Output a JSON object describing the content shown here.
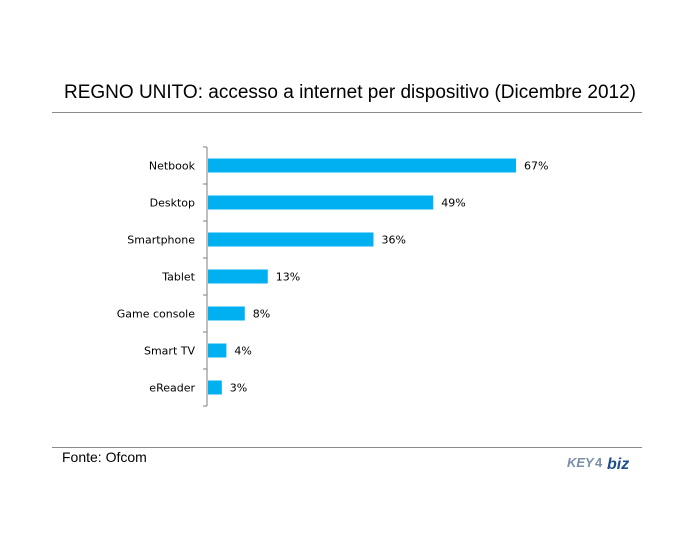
{
  "chart_data": {
    "type": "bar",
    "orientation": "horizontal",
    "title": "REGNO UNITO: accesso a internet per dispositivo (Dicembre 2012)",
    "categories": [
      "Netbook",
      "Desktop",
      "Smartphone",
      "Tablet",
      "Game console",
      "Smart TV",
      "eReader"
    ],
    "values": [
      67,
      49,
      36,
      13,
      8,
      4,
      3
    ],
    "value_labels": [
      "67%",
      "49%",
      "36%",
      "13%",
      "8%",
      "4%",
      "3%"
    ],
    "xlim": [
      0,
      100
    ],
    "grid": false,
    "bar_color": "#00b0f0"
  },
  "footer": {
    "source": "Fonte: Ofcom",
    "logo": "KEY4biz"
  },
  "colors": {
    "logo_key": "#7a8fa8",
    "logo_biz": "#1f4e8c"
  }
}
